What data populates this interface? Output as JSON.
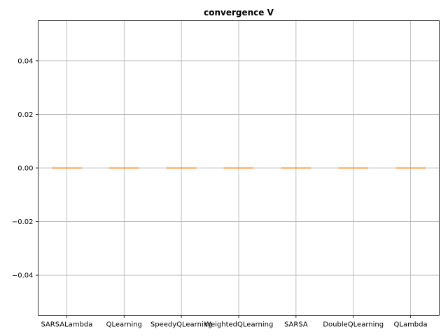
{
  "chart_data": {
    "type": "box",
    "title": "convergence V",
    "xlabel": "",
    "ylabel": "",
    "categories": [
      "SARSALambda",
      "QLearning",
      "SpeedyQLearning",
      "WeightedQLearning",
      "SARSA",
      "DoubleQLearning",
      "QLambda"
    ],
    "boxes": [
      {
        "category": "SARSALambda",
        "min": 0.0,
        "q1": 0.0,
        "median": 0.0,
        "q3": 0.0,
        "max": 0.0
      },
      {
        "category": "QLearning",
        "min": 0.0,
        "q1": 0.0,
        "median": 0.0,
        "q3": 0.0,
        "max": 0.0
      },
      {
        "category": "SpeedyQLearning",
        "min": 0.0,
        "q1": 0.0,
        "median": 0.0,
        "q3": 0.0,
        "max": 0.0
      },
      {
        "category": "WeightedQLearning",
        "min": 0.0,
        "q1": 0.0,
        "median": 0.0,
        "q3": 0.0,
        "max": 0.0
      },
      {
        "category": "SARSA",
        "min": 0.0,
        "q1": 0.0,
        "median": 0.0,
        "q3": 0.0,
        "max": 0.0
      },
      {
        "category": "DoubleQLearning",
        "min": 0.0,
        "q1": 0.0,
        "median": 0.0,
        "q3": 0.0,
        "max": 0.0
      },
      {
        "category": "QLambda",
        "min": 0.0,
        "q1": 0.0,
        "median": 0.0,
        "q3": 0.0,
        "max": 0.0
      }
    ],
    "ylim": [
      -0.055,
      0.055
    ],
    "yticks": [
      -0.04,
      -0.02,
      0.0,
      0.02,
      0.04
    ],
    "ytick_labels": [
      "−0.04",
      "−0.02",
      "0.00",
      "0.02",
      "0.04"
    ],
    "grid": true,
    "colors": {
      "median": "#ff7f0e",
      "box": "#000000",
      "grid": "#b0b0b0"
    }
  }
}
